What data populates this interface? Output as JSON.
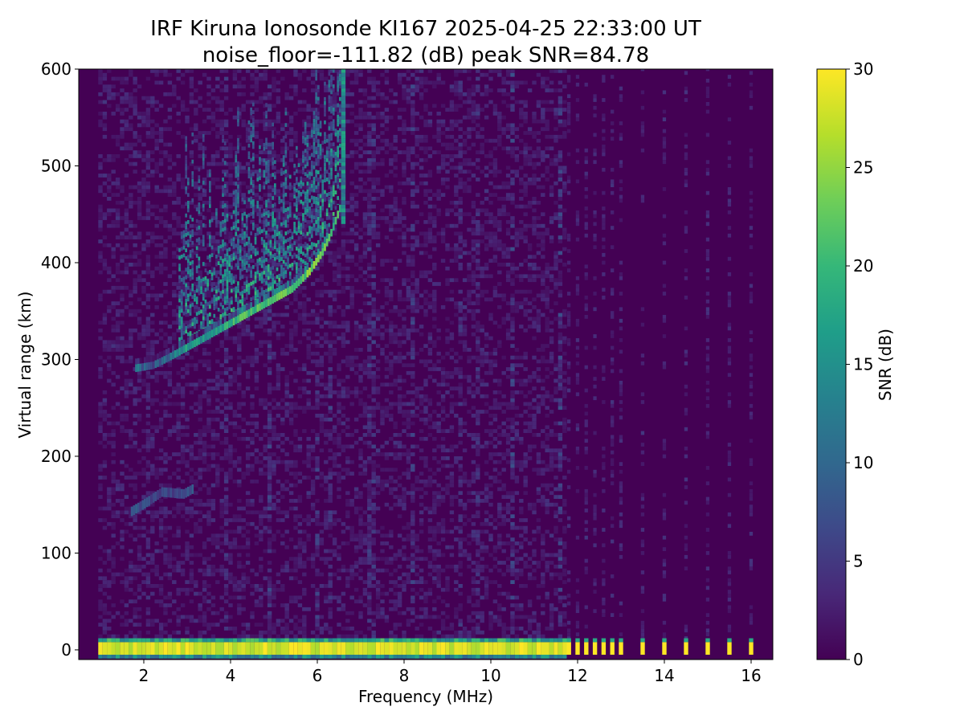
{
  "chart_data": {
    "type": "heatmap",
    "title": "IRF Kiruna Ionosonde KI167 2025-04-25 22:33:00  UT",
    "subtitle": "noise_floor=-111.82 (dB) peak SNR=84.78",
    "xlabel": "Frequency (MHz)",
    "ylabel": "Virtual range (km)",
    "xlim": [
      0.5,
      16.5
    ],
    "ylim": [
      -10,
      600
    ],
    "xticks": [
      2,
      4,
      6,
      8,
      10,
      12,
      14,
      16
    ],
    "yticks": [
      0,
      100,
      200,
      300,
      400,
      500,
      600
    ],
    "colorbar": {
      "label": "SNR (dB)",
      "range": [
        0,
        30
      ],
      "ticks": [
        0,
        5,
        10,
        15,
        20,
        25,
        30
      ],
      "colormap": "viridis"
    },
    "data_start_freq_mhz": 0.95,
    "continuous_sweep_end_mhz": 11.65,
    "discrete_freqs_mhz": [
      11.8,
      12.0,
      12.2,
      12.4,
      12.6,
      12.8,
      13.0,
      13.5,
      14.0,
      14.5,
      15.0,
      15.5,
      16.0
    ],
    "ground_echo": {
      "range_km": [
        -5,
        8
      ],
      "snr_db": 30
    },
    "f_layer_trace": [
      {
        "f": 1.8,
        "h": 290,
        "snr": 14
      },
      {
        "f": 2.2,
        "h": 293,
        "snr": 10
      },
      {
        "f": 2.6,
        "h": 302,
        "snr": 14
      },
      {
        "f": 3.0,
        "h": 312,
        "snr": 20
      },
      {
        "f": 3.4,
        "h": 322,
        "snr": 18
      },
      {
        "f": 3.8,
        "h": 332,
        "snr": 20
      },
      {
        "f": 4.2,
        "h": 342,
        "snr": 24
      },
      {
        "f": 4.6,
        "h": 352,
        "snr": 24
      },
      {
        "f": 5.0,
        "h": 362,
        "snr": 26
      },
      {
        "f": 5.4,
        "h": 372,
        "snr": 24
      },
      {
        "f": 5.8,
        "h": 390,
        "snr": 26
      },
      {
        "f": 6.1,
        "h": 410,
        "snr": 26
      },
      {
        "f": 6.3,
        "h": 430,
        "snr": 24
      },
      {
        "f": 6.5,
        "h": 455,
        "snr": 22
      },
      {
        "f": 6.6,
        "h": 480,
        "snr": 30
      }
    ],
    "spread_echo_region": {
      "freq_mhz": [
        2.8,
        6.6
      ],
      "range_km": [
        330,
        600
      ],
      "snr_db": [
        4,
        22
      ]
    },
    "e_layer_trace": [
      {
        "f": 1.7,
        "h": 142,
        "snr": 10
      },
      {
        "f": 2.0,
        "h": 150,
        "snr": 9
      },
      {
        "f": 2.4,
        "h": 162,
        "snr": 8
      },
      {
        "f": 2.9,
        "h": 160,
        "snr": 8
      },
      {
        "f": 3.1,
        "h": 165,
        "snr": 9
      }
    ]
  }
}
